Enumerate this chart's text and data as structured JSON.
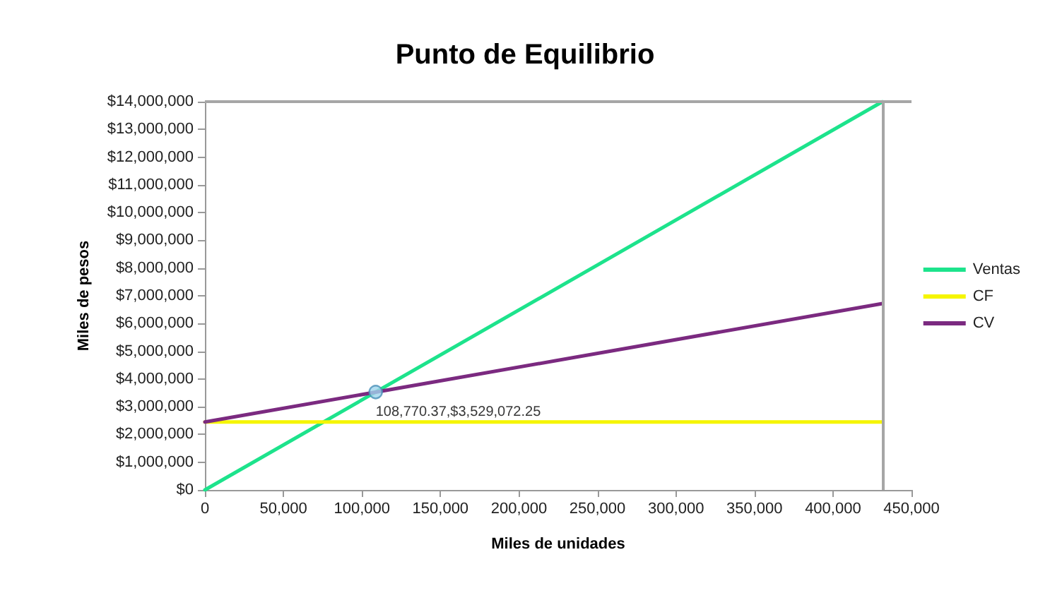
{
  "chart_data": {
    "type": "line",
    "title": "Punto de Equilibrio",
    "xlabel": "Miles de unidades",
    "ylabel": "Miles de pesos",
    "x": [
      0,
      431500
    ],
    "series": [
      {
        "name": "Ventas",
        "color": "#1de38c",
        "values": [
          0,
          14000000
        ]
      },
      {
        "name": "CF",
        "color": "#f5f500",
        "values": [
          2450000,
          2450000
        ]
      },
      {
        "name": "CV",
        "color": "#7b2a80",
        "values": [
          2450000,
          6720000
        ]
      }
    ],
    "annotations": [
      {
        "text": "108,770.37,$3,529,072.25",
        "x": 108770.37,
        "y": 3529072.25
      }
    ],
    "ref_lines": [
      {
        "axis": "x",
        "value": 431500,
        "color": "#a6a6a6"
      },
      {
        "axis": "y",
        "value": 14000000,
        "color": "#a6a6a6"
      }
    ],
    "xlim": [
      0,
      450000
    ],
    "xticks": [
      0,
      {
        "value": 50000,
        "label": "50,000"
      },
      {
        "value": 100000,
        "label": "100,000"
      },
      {
        "value": 150000,
        "label": "150,000"
      },
      {
        "value": 200000,
        "label": "200,000"
      },
      {
        "value": 250000,
        "label": "250,000"
      },
      {
        "value": 300000,
        "label": "300,000"
      },
      {
        "value": 350000,
        "label": "350,000"
      },
      {
        "value": 400000,
        "label": "400,000"
      },
      {
        "value": 450000,
        "label": "450,000"
      }
    ],
    "ylim": [
      0,
      14000000
    ],
    "yticks": [
      {
        "value": 0,
        "label": "$0"
      },
      {
        "value": 1000000,
        "label": "$1,000,000"
      },
      {
        "value": 2000000,
        "label": "$2,000,000"
      },
      {
        "value": 3000000,
        "label": "$3,000,000"
      },
      {
        "value": 4000000,
        "label": "$4,000,000"
      },
      {
        "value": 5000000,
        "label": "$5,000,000"
      },
      {
        "value": 6000000,
        "label": "$6,000,000"
      },
      {
        "value": 7000000,
        "label": "$7,000,000"
      },
      {
        "value": 8000000,
        "label": "$8,000,000"
      },
      {
        "value": 9000000,
        "label": "$9,000,000"
      },
      {
        "value": 10000000,
        "label": "$10,000,000"
      },
      {
        "value": 11000000,
        "label": "$11,000,000"
      },
      {
        "value": 12000000,
        "label": "$12,000,000"
      },
      {
        "value": 13000000,
        "label": "$13,000,000"
      },
      {
        "value": 14000000,
        "label": "$14,000,000"
      }
    ],
    "grid": false,
    "legend": "right",
    "marker": "none"
  }
}
